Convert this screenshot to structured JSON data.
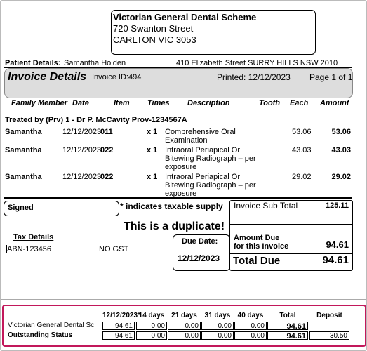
{
  "address": {
    "lines": [
      "Victorian General Dental Scheme",
      "720 Swanton Street",
      "CARLTON VIC 3053"
    ]
  },
  "patient": {
    "label": "Patient Details:",
    "name": "Samantha   Holden",
    "address": "410 Elizabeth Street  SURRY HILLS NSW 2010"
  },
  "invoice_header": {
    "title": "Invoice Details",
    "id": "Invoice ID:494",
    "printed": "Printed: 12/12/2023",
    "page": "Page 1 of 1"
  },
  "columns": [
    "Family Member",
    "Date",
    "Item",
    "Times",
    "Description",
    "Tooth",
    "Each",
    "Amount"
  ],
  "treated_by": "Treated by (Prv) 1 - Dr P. McCavity Prov-1234567A",
  "rows": [
    {
      "member": "Samantha",
      "date": "12/12/2023",
      "item": "011",
      "times": "x 1",
      "description": "Comprehensive Oral Examination",
      "each": "53.06",
      "amount": "53.06"
    },
    {
      "member": "Samantha",
      "date": "12/12/2023",
      "item": "022",
      "times": "x 1",
      "description": "Intraoral Periapical Or Bitewing Radiograph – per exposure",
      "each": "43.03",
      "amount": "43.03"
    },
    {
      "member": "Samantha",
      "date": "12/12/2023",
      "item": "022",
      "times": "x 1",
      "description": "Intraoral Periapical Or Bitewing Radiograph – per exposure",
      "each": "29.02",
      "amount": "29.02"
    }
  ],
  "signed": "Signed",
  "taxable_note": "* indicates taxable supply",
  "duplicate": "This is a duplicate!",
  "tax": {
    "label": "Tax Details",
    "abn": "ABN-123456",
    "gst": "NO GST"
  },
  "totals": {
    "sub_total_label": "Invoice Sub Total",
    "sub_total": "125.11",
    "amount_due_label": [
      "Amount Due",
      "for this Invoice"
    ],
    "amount_due": "94.61",
    "total_due_label": "Total Due",
    "total_due": "94.61"
  },
  "due_date": {
    "label": "Due Date:",
    "value": "12/12/2023"
  },
  "status": {
    "columns": [
      "12/12/2023*",
      "14 days",
      "21 days",
      "31 days",
      "40 days",
      "Total",
      "Deposit"
    ],
    "rows": [
      {
        "label": "Victorian General Dental Sc",
        "cells": [
          "94.61",
          "0.00",
          "0.00",
          "0.00",
          "0.00",
          "94.61"
        ]
      },
      {
        "label": "Outstanding Status",
        "cells": [
          "94.61",
          "0.00",
          "0.00",
          "0.00",
          "0.00",
          "94.61"
        ],
        "deposit": "30.50"
      }
    ]
  }
}
